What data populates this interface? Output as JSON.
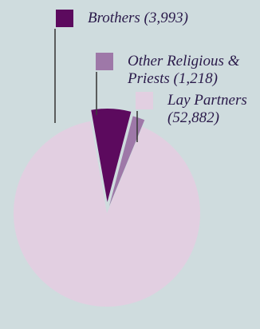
{
  "chart_data": {
    "type": "pie",
    "slices": [
      {
        "label_lines": [
          "Brothers (3,993)"
        ],
        "value": 3993,
        "color": "#5c0a5e",
        "exploded": true
      },
      {
        "label_lines": [
          "Other Religious &",
          "Priests (1,218)"
        ],
        "value": 1218,
        "color": "#9e78a8",
        "exploded": true
      },
      {
        "label_lines": [
          "Lay Partners",
          "(52,882)"
        ],
        "value": 52882,
        "color": "#e2cfe1",
        "exploded": false
      }
    ],
    "background": "#cfdcde",
    "leader_line_color": "#3c3c3c"
  }
}
